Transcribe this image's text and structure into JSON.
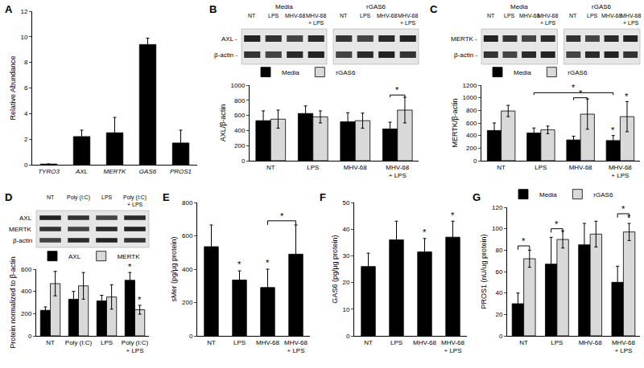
{
  "chart_data": [
    {
      "type": "bar",
      "title": "A",
      "y_label": "Relative Abundance",
      "categories": [
        "TYRO3",
        "AXL",
        "MERTK",
        "GAS6",
        "PROS1"
      ],
      "values": [
        0.05,
        2.2,
        2.5,
        9.4,
        1.7
      ],
      "errors": [
        0,
        0.5,
        1.2,
        0.5,
        1.0
      ],
      "color": "#000000",
      "ylim": [
        0,
        12
      ],
      "yticks": [
        0,
        2,
        4,
        6,
        8,
        10,
        12
      ],
      "grid": false
    },
    {
      "type": "bar",
      "title": "B",
      "y_label": "AXL/β-actin",
      "categories": [
        "NT",
        "LPS",
        "MHV-68",
        "MHV-68 + LPS"
      ],
      "series": [
        {
          "name": "Media",
          "color": "#000000",
          "values": [
            530,
            625,
            515,
            420
          ],
          "errors": [
            130,
            100,
            120,
            90
          ]
        },
        {
          "name": "rGAS6",
          "color": "#d9d9d9",
          "values": [
            550,
            580,
            530,
            670
          ],
          "errors": [
            120,
            80,
            100,
            170
          ]
        }
      ],
      "ylim": [
        0,
        1000
      ],
      "yticks": [
        0,
        200,
        400,
        600,
        800,
        1000
      ],
      "grid": false,
      "legend": "top",
      "annotations": [
        {
          "text": "*",
          "from": {
            "category": "MHV-68 + LPS",
            "series": "Media"
          },
          "to": {
            "category": "MHV-68 + LPS",
            "series": "rGAS6"
          },
          "y": 870
        }
      ],
      "blot": {
        "groups": [
          "Media",
          "rGAS6"
        ],
        "lanes": [
          "NT",
          "LPS",
          "MHV-68",
          "MHV-68 + LPS"
        ],
        "rows": [
          "AXL -",
          "β-actin -"
        ]
      }
    },
    {
      "type": "bar",
      "title": "C",
      "y_label": "MERTK/β-actin",
      "categories": [
        "NT",
        "LPS",
        "MHV-68",
        "MHV-68 + LPS"
      ],
      "series": [
        {
          "name": "Media",
          "color": "#000000",
          "values": [
            480,
            440,
            330,
            320
          ],
          "errors": [
            120,
            80,
            60,
            80
          ]
        },
        {
          "name": "rGAS6",
          "color": "#d9d9d9",
          "values": [
            790,
            490,
            740,
            700
          ],
          "errors": [
            90,
            60,
            240,
            240
          ]
        }
      ],
      "ylim": [
        0,
        1200
      ],
      "yticks": [
        0,
        200,
        400,
        600,
        800,
        1000,
        1200
      ],
      "grid": false,
      "legend": "top",
      "annotations": [
        {
          "text": "*",
          "from": {
            "category": "LPS",
            "series": "Media"
          },
          "to": {
            "category": "MHV-68 + LPS",
            "series": "Media"
          },
          "y": 1080
        },
        {
          "text": "*",
          "from": {
            "category": "MHV-68",
            "series": "Media"
          },
          "to": {
            "category": "MHV-68",
            "series": "rGAS6"
          },
          "y": 1000
        },
        {
          "text": "*",
          "at": {
            "category": "MHV-68 + LPS",
            "series": "Media"
          },
          "y": 410
        },
        {
          "text": "*",
          "at": {
            "category": "MHV-68 + LPS",
            "series": "rGAS6"
          },
          "y": 950
        }
      ],
      "blot": {
        "groups": [
          "Media",
          "rGAS6"
        ],
        "lanes": [
          "NT",
          "LPS",
          "MHV-68",
          "MHV-68 + LPS"
        ],
        "rows": [
          "MERTK -",
          "β-actin -"
        ]
      }
    },
    {
      "type": "bar",
      "title": "D",
      "y_label": "Protein normalized to β-actin",
      "categories": [
        "NT",
        "Poly (I:C)",
        "LPS",
        "Poly (I:C) + LPS"
      ],
      "series": [
        {
          "name": "AXL",
          "color": "#000000",
          "values": [
            230,
            330,
            315,
            500
          ],
          "errors": [
            30,
            70,
            50,
            70
          ]
        },
        {
          "name": "MERTK",
          "color": "#d9d9d9",
          "values": [
            470,
            450,
            350,
            235
          ],
          "errors": [
            110,
            120,
            110,
            40
          ]
        }
      ],
      "ylim": [
        0,
        600
      ],
      "yticks": [
        0,
        200,
        400,
        600
      ],
      "grid": false,
      "legend": "top",
      "annotations": [
        {
          "text": "*",
          "at": {
            "category": "Poly (I:C) + LPS",
            "series": "AXL"
          },
          "y": 580
        },
        {
          "text": "*",
          "at": {
            "category": "Poly (I:C) + LPS",
            "series": "MERTK"
          },
          "y": 285
        }
      ],
      "blot": {
        "lanes": [
          "NT",
          "Poly (I:C)",
          "LPS",
          "Poly (I:C) + LPS"
        ],
        "rows": [
          "AXL",
          "MERTK",
          "β-actin"
        ]
      }
    },
    {
      "type": "bar",
      "title": "E",
      "y_label": "sMer (pg/μg protein)",
      "categories": [
        "NT",
        "LPS",
        "MHV-68",
        "MHV-68 + LPS"
      ],
      "values": [
        535,
        335,
        290,
        490
      ],
      "errors": [
        130,
        55,
        110,
        175
      ],
      "color": "#000000",
      "ylim": [
        0,
        800
      ],
      "yticks": [
        0,
        200,
        400,
        600,
        800
      ],
      "grid": false,
      "annotations": [
        {
          "text": "*",
          "at": {
            "category": "LPS"
          },
          "y": 400
        },
        {
          "text": "*",
          "at": {
            "category": "MHV-68"
          },
          "y": 410
        },
        {
          "text": "*",
          "from": {
            "category": "MHV-68"
          },
          "to": {
            "category": "MHV-68 + LPS"
          },
          "y": 690
        }
      ]
    },
    {
      "type": "bar",
      "title": "F",
      "y_label": "GAS6 (pg/μg protein)",
      "categories": [
        "NT",
        "LPS",
        "MHV-68",
        "MHV-68 + LPS"
      ],
      "values": [
        26,
        36,
        31.5,
        37
      ],
      "errors": [
        5,
        7,
        5,
        6
      ],
      "color": "#000000",
      "ylim": [
        0,
        50
      ],
      "yticks": [
        0,
        10,
        20,
        30,
        40,
        50
      ],
      "grid": false,
      "annotations": [
        {
          "text": "*",
          "at": {
            "category": "MHV-68"
          },
          "y": 37
        },
        {
          "text": "*",
          "at": {
            "category": "MHV-68 + LPS"
          },
          "y": 43.5
        }
      ]
    },
    {
      "type": "bar",
      "title": "G",
      "y_label": "PROS1 (nU/ug protein)",
      "categories": [
        "NT",
        "LPS",
        "MHV-68",
        "MHV-68 + LPS"
      ],
      "series": [
        {
          "name": "Media",
          "color": "#000000",
          "values": [
            30,
            67,
            85,
            50
          ],
          "errors": [
            10,
            25,
            20,
            15
          ]
        },
        {
          "name": "rGAS6",
          "color": "#d9d9d9",
          "values": [
            72,
            90,
            95,
            97
          ],
          "errors": [
            8,
            8,
            12,
            8
          ]
        }
      ],
      "ylim": [
        0,
        120
      ],
      "yticks": [
        0,
        20,
        40,
        60,
        80,
        100,
        120
      ],
      "grid": false,
      "legend": "top",
      "annotations": [
        {
          "text": "*",
          "from": {
            "category": "NT",
            "series": "Media"
          },
          "to": {
            "category": "NT",
            "series": "rGAS6"
          },
          "y": 84
        },
        {
          "text": "*",
          "from": {
            "category": "LPS",
            "series": "Media"
          },
          "to": {
            "category": "LPS",
            "series": "rGAS6"
          },
          "y": 100
        },
        {
          "text": "*",
          "at": {
            "category": "MHV-68 + LPS",
            "series": "rGAS6"
          },
          "y": 106
        },
        {
          "text": "*",
          "from": {
            "category": "MHV-68 + LPS",
            "series": "Media"
          },
          "to": {
            "category": "MHV-68 + LPS",
            "series": "rGAS6"
          },
          "y": 114
        }
      ]
    }
  ]
}
